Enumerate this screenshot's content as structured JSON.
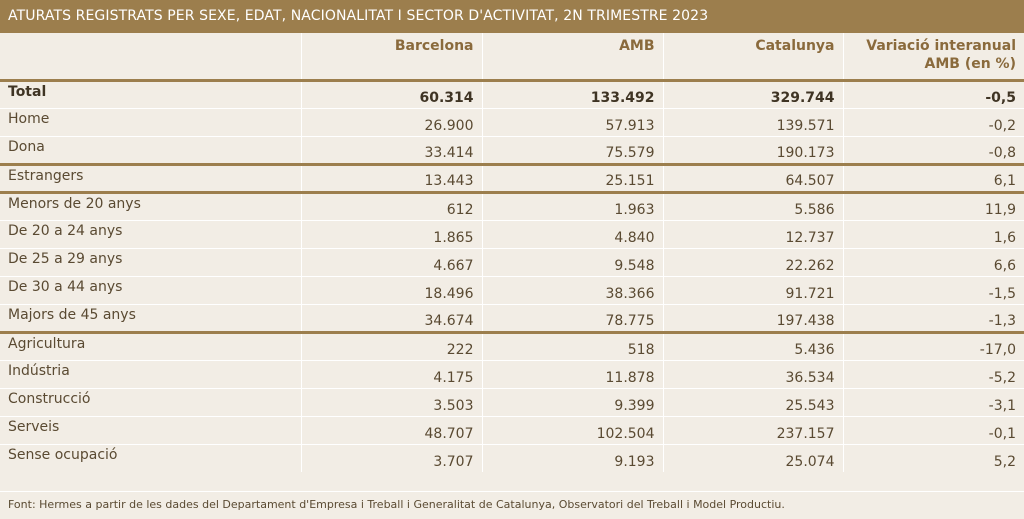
{
  "title": "ATURATS REGISTRATS PER SEXE, EDAT, NACIONALITAT I SECTOR D'ACTIVITAT, 2N TRIMESTRE 2023",
  "headers": [
    "",
    "Barcelona",
    "AMB",
    "Catalunya",
    "Variació interanual AMB (en %)"
  ],
  "rows": [
    {
      "label": "Total",
      "values": [
        "60.314",
        "133.492",
        "329.744",
        "-0,5"
      ]
    },
    {
      "label": "Home",
      "values": [
        "26.900",
        "57.913",
        "139.571",
        "-0,2"
      ]
    },
    {
      "label": "Dona",
      "values": [
        "33.414",
        "75.579",
        "190.173",
        "-0,8"
      ]
    },
    {
      "label": "Estrangers",
      "values": [
        "13.443",
        "25.151",
        "64.507",
        "6,1"
      ]
    },
    {
      "label": "Menors de 20 anys",
      "values": [
        "612",
        "1.963",
        "5.586",
        "11,9"
      ]
    },
    {
      "label": "De 20 a 24 anys",
      "values": [
        "1.865",
        "4.840",
        "12.737",
        "1,6"
      ]
    },
    {
      "label": "De 25 a 29 anys",
      "values": [
        "4.667",
        "9.548",
        "22.262",
        "6,6"
      ]
    },
    {
      "label": "De 30 a 44 anys",
      "values": [
        "18.496",
        "38.366",
        "91.721",
        "-1,5"
      ]
    },
    {
      "label": "Majors de 45 anys",
      "values": [
        "34.674",
        "78.775",
        "197.438",
        "-1,3"
      ]
    },
    {
      "label": "Agricultura",
      "values": [
        "222",
        "518",
        "5.436",
        "-17,0"
      ]
    },
    {
      "label": "Indústria",
      "values": [
        "4.175",
        "11.878",
        "36.534",
        "-5,2"
      ]
    },
    {
      "label": "Construcció",
      "values": [
        "3.503",
        "9.399",
        "25.543",
        "-3,1"
      ]
    },
    {
      "label": "Serveis",
      "values": [
        "48.707",
        "102.504",
        "237.157",
        "-0,1"
      ]
    },
    {
      "label": "Sense ocupació",
      "values": [
        "3.707",
        "9.193",
        "25.074",
        "5,2"
      ]
    }
  ],
  "footnote": "Font: Hermes a partir de les dades del Departament d'Empresa i Treball i Generalitat de Catalunya, Observatori del Treball i Model Productiu.",
  "colors": {
    "accent": "#9c7e4d",
    "background": "#f2ede5",
    "text": "#5a4a32"
  }
}
